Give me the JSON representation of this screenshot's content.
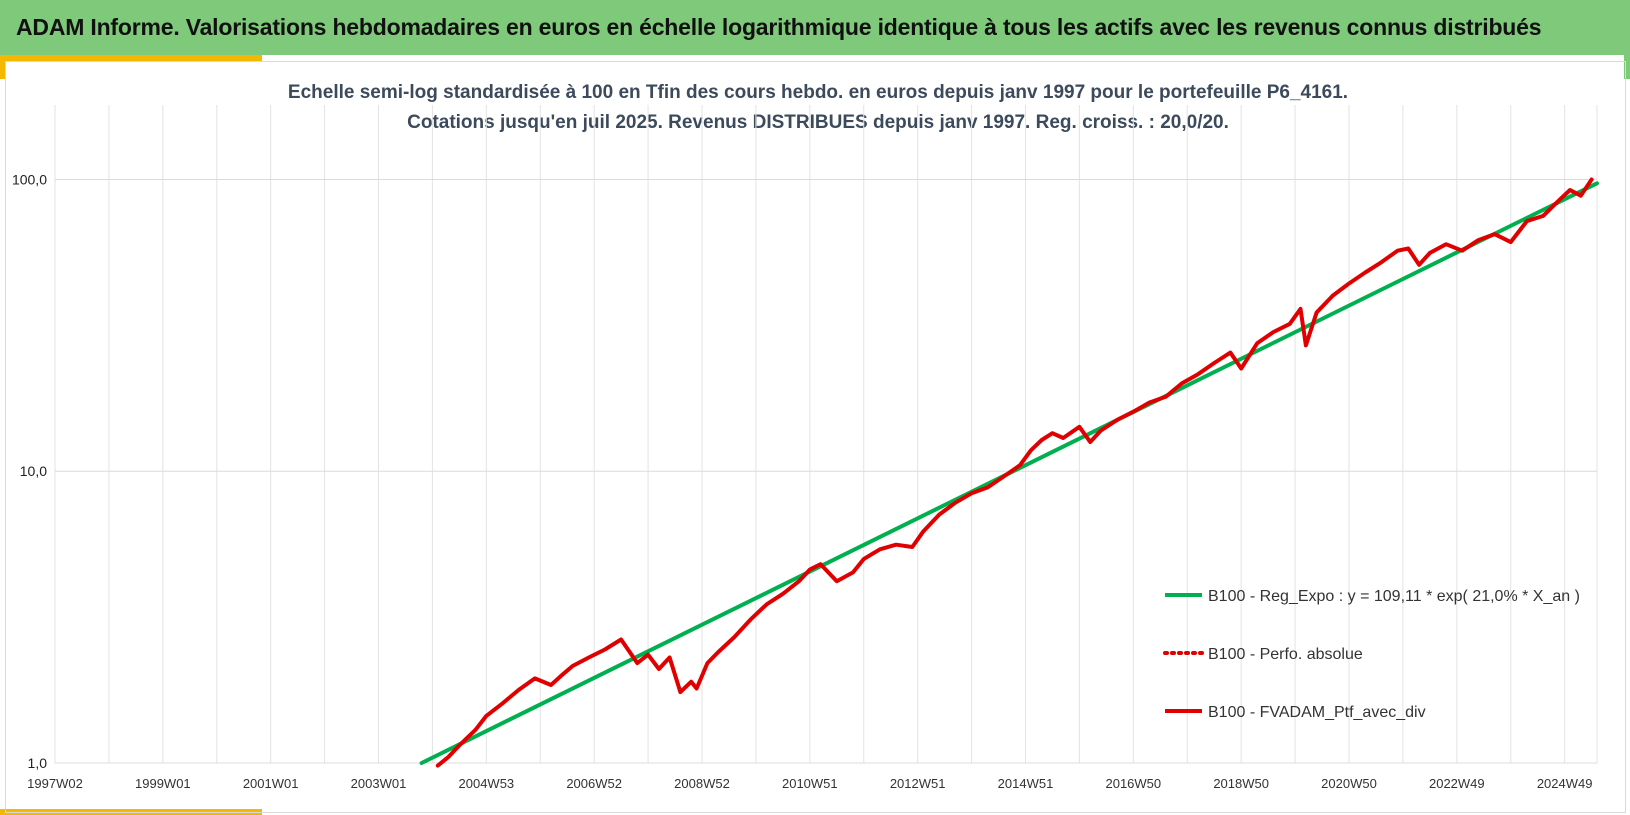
{
  "banner": {
    "title": "ADAM Informe. Valorisations hebdomadaires en euros en échelle logarithmique identique à tous les actifs avec les revenus connus distribués"
  },
  "chart_data": {
    "type": "line",
    "title": "Echelle semi-log standardisée  à 100 en Tfin des cours hebdo.  en euros depuis janv 1997 pour  le portefeuille P6_4161.",
    "subtitle": "Cotations  jusqu'en juil 2025. Revenus DISTRIBUES depuis janv 1997. Reg. croiss. : 20,0/20.",
    "y_scale": "log",
    "ylim": [
      1,
      180
    ],
    "xlim": [
      1997.0,
      2025.6
    ],
    "grid": true,
    "legend_position": "right",
    "x_ticks": [
      {
        "label": "1997W02",
        "x": 1997.0
      },
      {
        "label": "1999W01",
        "x": 1999.0
      },
      {
        "label": "2001W01",
        "x": 2001.0
      },
      {
        "label": "2003W01",
        "x": 2003.0
      },
      {
        "label": "2004W53",
        "x": 2005.0
      },
      {
        "label": "2006W52",
        "x": 2007.0
      },
      {
        "label": "2008W52",
        "x": 2009.0
      },
      {
        "label": "2010W51",
        "x": 2011.0
      },
      {
        "label": "2012W51",
        "x": 2013.0
      },
      {
        "label": "2014W51",
        "x": 2015.0
      },
      {
        "label": "2016W50",
        "x": 2017.0
      },
      {
        "label": "2018W50",
        "x": 2019.0
      },
      {
        "label": "2020W50",
        "x": 2021.0
      },
      {
        "label": "2022W49",
        "x": 2023.0
      },
      {
        "label": "2024W49",
        "x": 2025.0
      }
    ],
    "y_ticks": [
      {
        "label": "1,0",
        "value": 1
      },
      {
        "label": "10,0",
        "value": 10
      },
      {
        "label": "100,0",
        "value": 100
      }
    ],
    "series": [
      {
        "name": "B100 - Reg_Expo : y = 109,11 * exp( 21,0% *  X_an )",
        "color": "#00b050",
        "style": "solid",
        "x": [
          2003.8,
          2025.6
        ],
        "y": [
          1.0,
          97
        ]
      },
      {
        "name": "B100 - Perfo. absolue",
        "color": "#e00000",
        "style": "dotted",
        "x": [],
        "y": []
      },
      {
        "name": "B100 - FVADAM_Ptf_avec_div",
        "color": "#e00000",
        "style": "solid",
        "x": [
          2004.1,
          2004.3,
          2004.5,
          2004.8,
          2005.0,
          2005.3,
          2005.6,
          2005.9,
          2006.2,
          2006.4,
          2006.6,
          2006.9,
          2007.2,
          2007.5,
          2007.8,
          2008.0,
          2008.2,
          2008.4,
          2008.6,
          2008.8,
          2008.9,
          2009.1,
          2009.3,
          2009.6,
          2009.9,
          2010.2,
          2010.5,
          2010.8,
          2011.0,
          2011.2,
          2011.5,
          2011.8,
          2012.0,
          2012.3,
          2012.6,
          2012.9,
          2013.1,
          2013.4,
          2013.7,
          2014.0,
          2014.3,
          2014.6,
          2014.9,
          2015.1,
          2015.3,
          2015.5,
          2015.7,
          2016.0,
          2016.2,
          2016.4,
          2016.7,
          2017.0,
          2017.3,
          2017.6,
          2017.9,
          2018.2,
          2018.5,
          2018.8,
          2019.0,
          2019.3,
          2019.6,
          2019.9,
          2020.1,
          2020.2,
          2020.4,
          2020.7,
          2021.0,
          2021.3,
          2021.6,
          2021.9,
          2022.1,
          2022.3,
          2022.5,
          2022.8,
          2023.1,
          2023.4,
          2023.7,
          2024.0,
          2024.3,
          2024.6,
          2024.9,
          2025.1,
          2025.3,
          2025.5
        ],
        "y": [
          0.98,
          1.05,
          1.15,
          1.3,
          1.45,
          1.6,
          1.78,
          1.95,
          1.85,
          2.0,
          2.15,
          2.3,
          2.45,
          2.65,
          2.2,
          2.35,
          2.1,
          2.3,
          1.75,
          1.9,
          1.8,
          2.2,
          2.4,
          2.7,
          3.1,
          3.5,
          3.8,
          4.2,
          4.6,
          4.8,
          4.2,
          4.5,
          5.0,
          5.4,
          5.6,
          5.5,
          6.2,
          7.1,
          7.8,
          8.4,
          8.8,
          9.6,
          10.5,
          11.8,
          12.8,
          13.5,
          13.0,
          14.2,
          12.6,
          13.8,
          15.0,
          16.0,
          17.2,
          18.0,
          20.0,
          21.5,
          23.5,
          25.5,
          22.5,
          27.5,
          30.0,
          32.0,
          36.0,
          27.0,
          35.0,
          40.0,
          44.0,
          48.0,
          52.0,
          57.0,
          58.0,
          51.0,
          56.0,
          60.0,
          57.0,
          62.0,
          65.0,
          61.0,
          72.0,
          75.0,
          85.0,
          92.0,
          88.0,
          100.0
        ]
      }
    ]
  }
}
